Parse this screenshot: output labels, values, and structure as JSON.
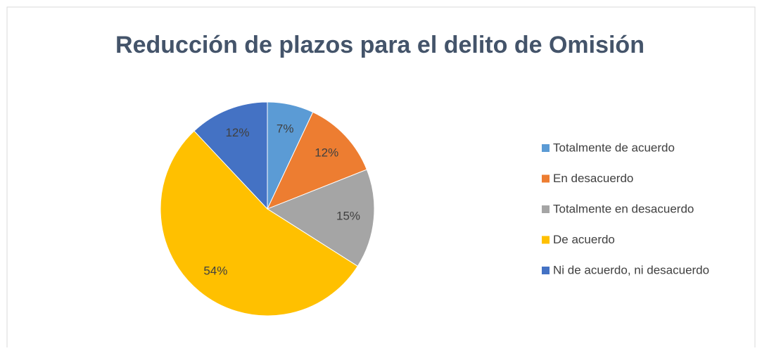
{
  "chart_data": {
    "type": "pie",
    "title": "Reducción de plazos para el delito de Omisión",
    "categories": [
      "Totalmente de acuerdo",
      "En desacuerdo",
      "Totalmente en desacuerdo",
      "De acuerdo",
      "Ni de acuerdo, ni desacuerdo"
    ],
    "values": [
      7,
      12,
      15,
      54,
      12
    ],
    "value_labels": [
      "7%",
      "12%",
      "15%",
      "54%",
      "12%"
    ],
    "colors": [
      "#5b9bd5",
      "#ed7d31",
      "#a5a5a5",
      "#ffc000",
      "#4472c4"
    ],
    "legend": "right"
  }
}
